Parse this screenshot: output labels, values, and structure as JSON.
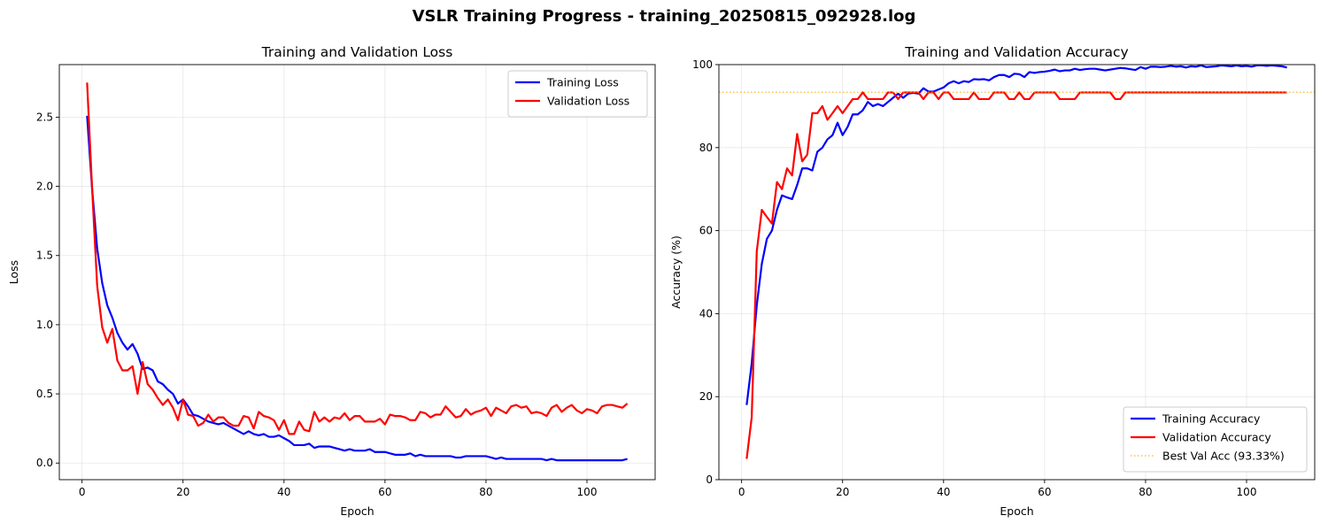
{
  "figure": {
    "title": "VSLR Training Progress - training_20250815_092928.log"
  },
  "chart_data": [
    {
      "type": "line",
      "title": "Training and Validation Loss",
      "xlabel": "Epoch",
      "ylabel": "Loss",
      "xlim": [
        -4.5,
        113.5
      ],
      "ylim": [
        -0.12,
        2.88
      ],
      "xticks": [
        0,
        20,
        40,
        60,
        80,
        100
      ],
      "yticks": [
        0.0,
        0.5,
        1.0,
        1.5,
        2.0,
        2.5
      ],
      "grid": true,
      "legend_position": "upper-right",
      "series": [
        {
          "name": "Training Loss",
          "color": "#0000ff",
          "x": [
            1,
            2,
            3,
            4,
            5,
            6,
            7,
            8,
            9,
            10,
            11,
            12,
            13,
            14,
            15,
            16,
            17,
            18,
            19,
            20,
            21,
            22,
            23,
            24,
            25,
            26,
            27,
            28,
            29,
            30,
            31,
            32,
            33,
            34,
            35,
            36,
            37,
            38,
            39,
            40,
            41,
            42,
            43,
            44,
            45,
            46,
            47,
            48,
            49,
            50,
            51,
            52,
            53,
            54,
            55,
            56,
            57,
            58,
            59,
            60,
            61,
            62,
            63,
            64,
            65,
            66,
            67,
            68,
            69,
            70,
            71,
            72,
            73,
            74,
            75,
            76,
            77,
            78,
            79,
            80,
            81,
            82,
            83,
            84,
            85,
            86,
            87,
            88,
            89,
            90,
            91,
            92,
            93,
            94,
            95,
            96,
            97,
            98,
            99,
            100,
            101,
            102,
            103,
            104,
            105,
            106,
            107,
            108
          ],
          "y": [
            2.51,
            1.98,
            1.55,
            1.3,
            1.14,
            1.05,
            0.94,
            0.87,
            0.82,
            0.86,
            0.79,
            0.68,
            0.69,
            0.67,
            0.59,
            0.57,
            0.53,
            0.5,
            0.43,
            0.46,
            0.41,
            0.35,
            0.34,
            0.32,
            0.3,
            0.29,
            0.28,
            0.29,
            0.27,
            0.25,
            0.23,
            0.21,
            0.23,
            0.21,
            0.2,
            0.21,
            0.19,
            0.19,
            0.2,
            0.18,
            0.16,
            0.13,
            0.13,
            0.13,
            0.14,
            0.11,
            0.12,
            0.12,
            0.12,
            0.11,
            0.1,
            0.09,
            0.1,
            0.09,
            0.09,
            0.09,
            0.1,
            0.08,
            0.08,
            0.08,
            0.07,
            0.06,
            0.06,
            0.06,
            0.07,
            0.05,
            0.06,
            0.05,
            0.05,
            0.05,
            0.05,
            0.05,
            0.05,
            0.04,
            0.04,
            0.05,
            0.05,
            0.05,
            0.05,
            0.05,
            0.04,
            0.03,
            0.04,
            0.03,
            0.03,
            0.03,
            0.03,
            0.03,
            0.03,
            0.03,
            0.03,
            0.02,
            0.03,
            0.02,
            0.02,
            0.02,
            0.02,
            0.02,
            0.02,
            0.02,
            0.02,
            0.02,
            0.02,
            0.02,
            0.02,
            0.02,
            0.02,
            0.03
          ]
        },
        {
          "name": "Validation Loss",
          "color": "#ff0000",
          "x": [
            1,
            2,
            3,
            4,
            5,
            6,
            7,
            8,
            9,
            10,
            11,
            12,
            13,
            14,
            15,
            16,
            17,
            18,
            19,
            20,
            21,
            22,
            23,
            24,
            25,
            26,
            27,
            28,
            29,
            30,
            31,
            32,
            33,
            34,
            35,
            36,
            37,
            38,
            39,
            40,
            41,
            42,
            43,
            44,
            45,
            46,
            47,
            48,
            49,
            50,
            51,
            52,
            53,
            54,
            55,
            56,
            57,
            58,
            59,
            60,
            61,
            62,
            63,
            64,
            65,
            66,
            67,
            68,
            69,
            70,
            71,
            72,
            73,
            74,
            75,
            76,
            77,
            78,
            79,
            80,
            81,
            82,
            83,
            84,
            85,
            86,
            87,
            88,
            89,
            90,
            91,
            92,
            93,
            94,
            95,
            96,
            97,
            98,
            99,
            100,
            101,
            102,
            103,
            104,
            105,
            106,
            107,
            108
          ],
          "y": [
            2.75,
            1.98,
            1.28,
            0.98,
            0.87,
            0.97,
            0.74,
            0.67,
            0.67,
            0.7,
            0.5,
            0.73,
            0.57,
            0.53,
            0.47,
            0.42,
            0.46,
            0.4,
            0.31,
            0.46,
            0.35,
            0.34,
            0.27,
            0.29,
            0.35,
            0.3,
            0.33,
            0.33,
            0.29,
            0.27,
            0.27,
            0.34,
            0.33,
            0.25,
            0.37,
            0.34,
            0.33,
            0.31,
            0.24,
            0.31,
            0.21,
            0.21,
            0.3,
            0.24,
            0.23,
            0.37,
            0.3,
            0.33,
            0.3,
            0.33,
            0.32,
            0.36,
            0.31,
            0.34,
            0.34,
            0.3,
            0.3,
            0.3,
            0.32,
            0.28,
            0.35,
            0.34,
            0.34,
            0.33,
            0.31,
            0.31,
            0.37,
            0.36,
            0.33,
            0.35,
            0.35,
            0.41,
            0.37,
            0.33,
            0.34,
            0.39,
            0.35,
            0.37,
            0.38,
            0.4,
            0.34,
            0.4,
            0.38,
            0.36,
            0.41,
            0.42,
            0.4,
            0.41,
            0.36,
            0.37,
            0.36,
            0.34,
            0.4,
            0.42,
            0.37,
            0.4,
            0.42,
            0.38,
            0.36,
            0.39,
            0.38,
            0.36,
            0.41,
            0.42,
            0.42,
            0.41,
            0.4,
            0.43
          ]
        }
      ]
    },
    {
      "type": "line",
      "title": "Training and Validation Accuracy",
      "xlabel": "Epoch",
      "ylabel": "Accuracy (%)",
      "xlim": [
        -4.5,
        113.5
      ],
      "ylim": [
        0,
        100
      ],
      "xticks": [
        0,
        20,
        40,
        60,
        80,
        100
      ],
      "yticks": [
        0,
        20,
        40,
        60,
        80,
        100
      ],
      "grid": true,
      "legend_position": "lower-right",
      "series": [
        {
          "name": "Training Accuracy",
          "color": "#0000ff",
          "x": [
            1,
            2,
            3,
            4,
            5,
            6,
            7,
            8,
            9,
            10,
            11,
            12,
            13,
            14,
            15,
            16,
            17,
            18,
            19,
            20,
            21,
            22,
            23,
            24,
            25,
            26,
            27,
            28,
            29,
            30,
            31,
            32,
            33,
            34,
            35,
            36,
            37,
            38,
            39,
            40,
            41,
            42,
            43,
            44,
            45,
            46,
            47,
            48,
            49,
            50,
            51,
            52,
            53,
            54,
            55,
            56,
            57,
            58,
            59,
            60,
            61,
            62,
            63,
            64,
            65,
            66,
            67,
            68,
            69,
            70,
            71,
            72,
            73,
            74,
            75,
            76,
            77,
            78,
            79,
            80,
            81,
            82,
            83,
            84,
            85,
            86,
            87,
            88,
            89,
            90,
            91,
            92,
            93,
            94,
            95,
            96,
            97,
            98,
            99,
            100,
            101,
            102,
            103,
            104,
            105,
            106,
            107,
            108
          ],
          "y": [
            18,
            28,
            42,
            52,
            58,
            60,
            65,
            68.5,
            68,
            67.6,
            71,
            75,
            75,
            74.5,
            79,
            80,
            82,
            83,
            86,
            83,
            85,
            88,
            88,
            89,
            91,
            90,
            90.5,
            90,
            91,
            92,
            93,
            92,
            93,
            93.2,
            93,
            94.3,
            93.5,
            93.5,
            94,
            94.5,
            95.5,
            96,
            95.5,
            96,
            95.8,
            96.5,
            96.4,
            96.5,
            96.2,
            97,
            97.5,
            97.5,
            97,
            97.8,
            97.7,
            97,
            98.2,
            98,
            98.2,
            98.3,
            98.5,
            98.8,
            98.4,
            98.6,
            98.6,
            99,
            98.7,
            98.9,
            99,
            99,
            98.8,
            98.6,
            98.8,
            99,
            99.2,
            99.1,
            98.9,
            98.7,
            99.4,
            99,
            99.5,
            99.5,
            99.4,
            99.5,
            99.7,
            99.5,
            99.6,
            99.3,
            99.6,
            99.5,
            99.8,
            99.4,
            99.5,
            99.6,
            99.8,
            99.7,
            99.6,
            99.8,
            99.6,
            99.7,
            99.5,
            99.8,
            99.8,
            99.7,
            99.8,
            99.7,
            99.6,
            99.3
          ]
        },
        {
          "name": "Validation Accuracy",
          "color": "#ff0000",
          "x": [
            1,
            2,
            3,
            4,
            5,
            6,
            7,
            8,
            9,
            10,
            11,
            12,
            13,
            14,
            15,
            16,
            17,
            18,
            19,
            20,
            21,
            22,
            23,
            24,
            25,
            26,
            27,
            28,
            29,
            30,
            31,
            32,
            33,
            34,
            35,
            36,
            37,
            38,
            39,
            40,
            41,
            42,
            43,
            44,
            45,
            46,
            47,
            48,
            49,
            50,
            51,
            52,
            53,
            54,
            55,
            56,
            57,
            58,
            59,
            60,
            61,
            62,
            63,
            64,
            65,
            66,
            67,
            68,
            69,
            70,
            71,
            72,
            73,
            74,
            75,
            76,
            77,
            78,
            79,
            80,
            81,
            82,
            83,
            84,
            85,
            86,
            87,
            88,
            89,
            90,
            91,
            92,
            93,
            94,
            95,
            96,
            97,
            98,
            99,
            100,
            101,
            102,
            103,
            104,
            105,
            106,
            107,
            108
          ],
          "y": [
            5,
            15,
            55,
            65,
            63.3,
            61.7,
            71.7,
            70,
            75,
            73.3,
            83.3,
            76.7,
            78.3,
            88.3,
            88.3,
            90,
            86.7,
            88.3,
            90,
            88.3,
            90,
            91.7,
            91.7,
            93.3,
            91.7,
            91.7,
            91.7,
            91.7,
            93.3,
            93.3,
            91.7,
            93.3,
            93.3,
            93.3,
            93.3,
            91.7,
            93.3,
            93.3,
            91.7,
            93.3,
            93.3,
            91.7,
            91.7,
            91.7,
            91.7,
            93.3,
            91.7,
            91.7,
            91.7,
            93.3,
            93.3,
            93.3,
            91.7,
            91.7,
            93.3,
            91.7,
            91.7,
            93.3,
            93.3,
            93.3,
            93.3,
            93.3,
            91.7,
            91.7,
            91.7,
            91.7,
            93.3,
            93.3,
            93.3,
            93.3,
            93.3,
            93.3,
            93.3,
            91.7,
            91.7,
            93.3,
            93.3,
            93.3,
            93.3,
            93.3,
            93.3,
            93.3,
            93.3,
            93.3,
            93.3,
            93.3,
            93.3,
            93.3,
            93.3,
            93.3,
            93.3,
            93.3,
            93.3,
            93.3,
            93.3,
            93.3,
            93.3,
            93.3,
            93.3,
            93.3,
            93.3,
            93.3,
            93.3,
            93.3,
            93.3,
            93.3,
            93.3,
            93.3
          ]
        },
        {
          "name": "Best Val Acc (93.33%)",
          "color": "#ffa500",
          "style": "dotted",
          "type": "hline",
          "y": 93.33
        }
      ]
    }
  ]
}
